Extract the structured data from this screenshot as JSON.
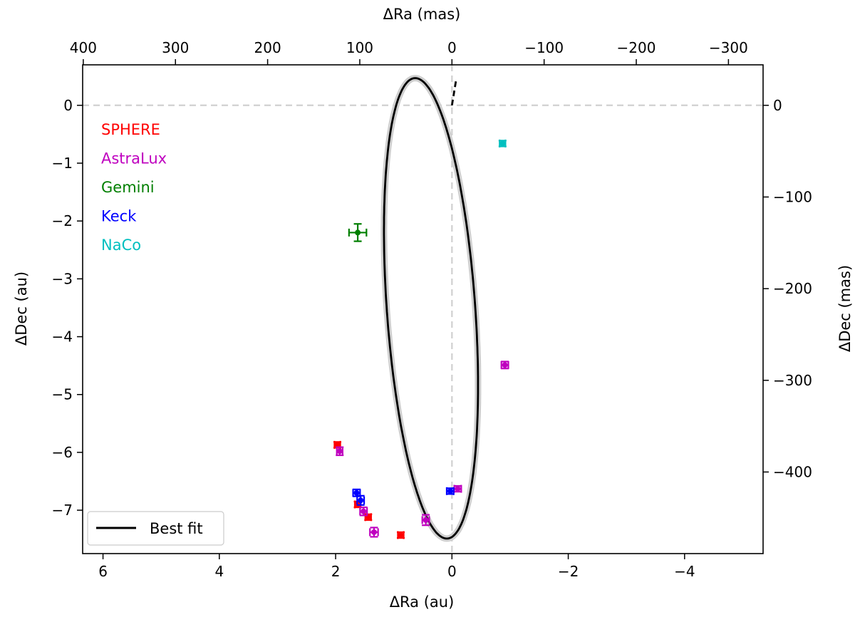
{
  "chart_data": {
    "type": "scatter",
    "title": "",
    "xlabel": "ΔRa (au)",
    "ylabel": "ΔDec (au)",
    "xlabel_top": "ΔRa (mas)",
    "ylabel_right": "ΔDec (mas)",
    "xlim": [
      6.35,
      -5.35
    ],
    "ylim": [
      -7.75,
      0.7
    ],
    "x_ticks": [
      6,
      4,
      2,
      0,
      -2,
      -4
    ],
    "x_tick_labels": [
      "6",
      "4",
      "2",
      "0",
      "−2",
      "−4"
    ],
    "y_ticks": [
      0,
      -1,
      -2,
      -3,
      -4,
      -5,
      -6,
      -7
    ],
    "y_tick_labels": [
      "0",
      "−1",
      "−2",
      "−3",
      "−4",
      "−5",
      "−6",
      "−7"
    ],
    "x2_ticks": [
      400,
      300,
      200,
      100,
      0,
      -100,
      -200,
      -300
    ],
    "x2_tick_labels": [
      "400",
      "300",
      "200",
      "100",
      "0",
      "−100",
      "−200",
      "−300"
    ],
    "y2_ticks": [
      0,
      -100,
      -200,
      -300,
      -400
    ],
    "y2_tick_labels": [
      "0",
      "−100",
      "−200",
      "−300",
      "−400"
    ],
    "mas_per_au": 63.1,
    "reference_lines": {
      "x": 0,
      "y": 0,
      "style": "dashed",
      "color": "#d3d3d3"
    },
    "orbit": {
      "label": "Best fit",
      "center": [
        0.36,
        -3.51
      ],
      "semi_axes": [
        0.76,
        3.99
      ],
      "rotation_deg": -4.05,
      "color": "#000000"
    },
    "node_line": {
      "from": [
        0,
        0
      ],
      "to": [
        -0.07,
        0.43
      ],
      "style": "dashed",
      "color": "#000000"
    },
    "series": [
      {
        "name": "SPHERE",
        "color": "#ff0000",
        "points": [
          [
            1.97,
            -5.87,
            0.05,
            0.05
          ],
          [
            1.62,
            -6.9,
            0.05,
            0.05
          ],
          [
            1.44,
            -7.12,
            0.05,
            0.05
          ],
          [
            0.88,
            -7.43,
            0.05,
            0.05
          ]
        ]
      },
      {
        "name": "AstraLux",
        "color": "#bf00bf",
        "points": [
          [
            1.93,
            -5.98,
            0.05,
            0.07
          ],
          [
            1.52,
            -7.02,
            0.06,
            0.07
          ],
          [
            1.34,
            -7.38,
            0.07,
            0.08
          ],
          [
            0.45,
            -7.17,
            0.06,
            0.09
          ],
          [
            -0.1,
            -6.63,
            0.06,
            0.05
          ],
          [
            -0.91,
            -4.49,
            0.06,
            0.06
          ]
        ]
      },
      {
        "name": "Gemini",
        "color": "#007f00",
        "points": [
          [
            1.62,
            -2.2,
            0.15,
            0.15
          ]
        ]
      },
      {
        "name": "Keck",
        "color": "#0000ff",
        "points": [
          [
            1.64,
            -6.7,
            0.06,
            0.06
          ],
          [
            1.57,
            -6.83,
            0.06,
            0.08
          ],
          [
            0.03,
            -6.67,
            0.06,
            0.05
          ]
        ]
      },
      {
        "name": "NaCo",
        "color": "#00bfbf",
        "points": [
          [
            -0.87,
            -0.66,
            0.05,
            0.05
          ]
        ]
      }
    ],
    "legend_items": [
      {
        "label": "SPHERE",
        "color": "#ff0000"
      },
      {
        "label": "AstraLux",
        "color": "#bf00bf"
      },
      {
        "label": "Gemini",
        "color": "#007f00"
      },
      {
        "label": "Keck",
        "color": "#0000ff"
      },
      {
        "label": "NaCo",
        "color": "#00bfbf"
      }
    ],
    "line_legend": {
      "label": "Best fit",
      "position": "lower-left"
    }
  }
}
